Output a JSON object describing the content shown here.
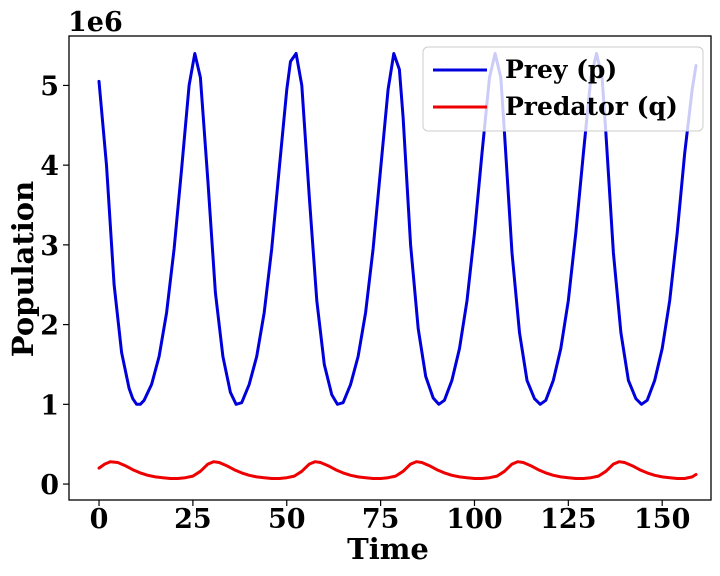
{
  "chart_data": {
    "type": "line",
    "xlabel": "Time",
    "ylabel": "Population",
    "y_offset_text": "1e6",
    "xlim": [
      -8,
      163
    ],
    "ylim": [
      -0.2,
      5.62
    ],
    "x_ticks": [
      0,
      25,
      50,
      75,
      100,
      125,
      150
    ],
    "x_tick_labels": [
      "0",
      "25",
      "50",
      "75",
      "100",
      "125",
      "150"
    ],
    "y_ticks": [
      0,
      1,
      2,
      3,
      4,
      5
    ],
    "y_tick_labels": [
      "0",
      "1",
      "2",
      "3",
      "4",
      "5"
    ],
    "grid": false,
    "legend_position": "top-right",
    "series": [
      {
        "name": "Prey (p)",
        "color": "#0000dd",
        "x": [
          0,
          2,
          4,
          6,
          8,
          9,
          10,
          11,
          12,
          14,
          16,
          18,
          20,
          22,
          24,
          25.5,
          27,
          29,
          31,
          33,
          35,
          36.5,
          38,
          40,
          42,
          44,
          46,
          48,
          50,
          51,
          52.5,
          54,
          56,
          58,
          60,
          62,
          63.5,
          65,
          67,
          69,
          71,
          73,
          75,
          77,
          78.5,
          80,
          81,
          83,
          85,
          87,
          89,
          90.5,
          92,
          94,
          96,
          98,
          100,
          102,
          104,
          105.5,
          107,
          108,
          110,
          112,
          114,
          116,
          117.5,
          119,
          121,
          123,
          125,
          127,
          129,
          131,
          132.5,
          134,
          135,
          137,
          139,
          141,
          143,
          144.5,
          146,
          148,
          150,
          152,
          154,
          156,
          158,
          159
        ],
        "y": [
          5.05,
          4.0,
          2.5,
          1.65,
          1.2,
          1.07,
          1.0,
          1.0,
          1.05,
          1.25,
          1.6,
          2.15,
          2.95,
          3.95,
          5.0,
          5.4,
          5.1,
          3.8,
          2.4,
          1.6,
          1.15,
          1.0,
          1.02,
          1.25,
          1.6,
          2.15,
          2.95,
          3.95,
          4.95,
          5.3,
          5.4,
          5.0,
          3.6,
          2.3,
          1.5,
          1.12,
          1.0,
          1.02,
          1.25,
          1.6,
          2.15,
          2.95,
          3.95,
          4.95,
          5.4,
          5.2,
          4.6,
          3.0,
          1.95,
          1.35,
          1.08,
          1.0,
          1.05,
          1.3,
          1.7,
          2.3,
          3.15,
          4.15,
          5.1,
          5.4,
          5.1,
          4.4,
          2.9,
          1.9,
          1.3,
          1.07,
          1.0,
          1.05,
          1.3,
          1.7,
          2.3,
          3.15,
          4.15,
          5.1,
          5.4,
          5.1,
          4.4,
          2.9,
          1.9,
          1.3,
          1.07,
          1.0,
          1.05,
          1.3,
          1.7,
          2.3,
          3.15,
          4.15,
          4.95,
          5.25
        ]
      },
      {
        "name": "Predator (q)",
        "color": "#ee0000",
        "x": [
          0,
          1.5,
          3,
          5,
          7,
          9,
          11,
          13,
          15,
          17,
          19,
          21,
          23,
          25,
          27,
          29,
          30.5,
          32,
          34,
          36,
          38,
          40,
          42,
          44,
          46,
          48,
          50,
          52,
          54,
          56,
          57.5,
          59,
          61,
          63,
          65,
          67,
          69,
          71,
          73,
          75,
          77,
          79,
          81,
          83,
          84.5,
          86,
          88,
          90,
          92,
          94,
          96,
          98,
          100,
          102,
          104,
          106,
          108,
          110,
          111.5,
          113,
          115,
          117,
          119,
          121,
          123,
          125,
          127,
          129,
          131,
          133,
          135,
          137,
          138.5,
          140,
          142,
          144,
          146,
          148,
          150,
          152,
          154,
          156,
          158,
          159
        ],
        "y": [
          0.2,
          0.25,
          0.28,
          0.27,
          0.23,
          0.18,
          0.14,
          0.11,
          0.09,
          0.08,
          0.07,
          0.07,
          0.08,
          0.1,
          0.16,
          0.25,
          0.28,
          0.27,
          0.23,
          0.18,
          0.14,
          0.11,
          0.09,
          0.08,
          0.07,
          0.07,
          0.08,
          0.1,
          0.16,
          0.25,
          0.28,
          0.27,
          0.23,
          0.18,
          0.14,
          0.11,
          0.09,
          0.08,
          0.07,
          0.07,
          0.08,
          0.1,
          0.16,
          0.25,
          0.28,
          0.27,
          0.23,
          0.18,
          0.14,
          0.11,
          0.09,
          0.08,
          0.07,
          0.07,
          0.08,
          0.1,
          0.16,
          0.25,
          0.28,
          0.27,
          0.23,
          0.18,
          0.14,
          0.11,
          0.09,
          0.08,
          0.07,
          0.07,
          0.08,
          0.1,
          0.16,
          0.25,
          0.28,
          0.27,
          0.23,
          0.18,
          0.14,
          0.11,
          0.09,
          0.08,
          0.07,
          0.07,
          0.09,
          0.12
        ]
      }
    ]
  }
}
